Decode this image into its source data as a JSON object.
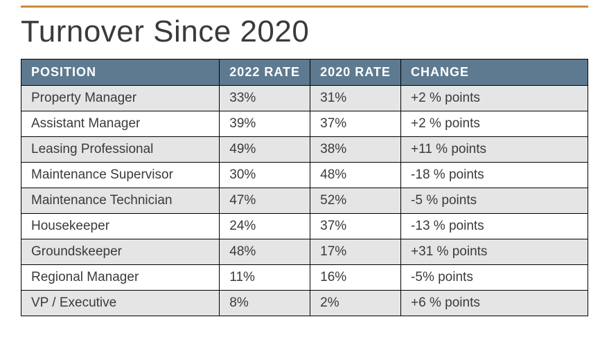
{
  "title": "Turnover Since 2020",
  "accent_rule_color": "#c98a3a",
  "header_bg": "#5d7a90",
  "header_fg": "#ffffff",
  "row_alt_bg": "#e5e5e5",
  "row_bg": "#ffffff",
  "border_color": "#000000",
  "text_color": "#3a3a3a",
  "title_fontsize": 44,
  "cell_fontsize": 19,
  "table": {
    "columns": [
      "POSITION",
      "2022 RATE",
      "2020 RATE",
      "CHANGE"
    ],
    "rows": [
      {
        "position": "Property Manager",
        "rate_2022": "33%",
        "rate_2020": "31%",
        "change": "+2 % points"
      },
      {
        "position": "Assistant Manager",
        "rate_2022": "39%",
        "rate_2020": "37%",
        "change": "+2 % points"
      },
      {
        "position": "Leasing Professional",
        "rate_2022": "49%",
        "rate_2020": "38%",
        "change": "+11 % points"
      },
      {
        "position": "Maintenance Supervisor",
        "rate_2022": "30%",
        "rate_2020": "48%",
        "change": "-18 % points"
      },
      {
        "position": "Maintenance Technician",
        "rate_2022": "47%",
        "rate_2020": "52%",
        "change": "-5 % points"
      },
      {
        "position": "Housekeeper",
        "rate_2022": "24%",
        "rate_2020": "37%",
        "change": "-13 % points"
      },
      {
        "position": "Groundskeeper",
        "rate_2022": "48%",
        "rate_2020": "17%",
        "change": "+31 % points"
      },
      {
        "position": "Regional Manager",
        "rate_2022": "11%",
        "rate_2020": "16%",
        "change": "-5% points"
      },
      {
        "position": "VP / Executive",
        "rate_2022": "8%",
        "rate_2020": "2%",
        "change": "+6 % points"
      }
    ]
  }
}
